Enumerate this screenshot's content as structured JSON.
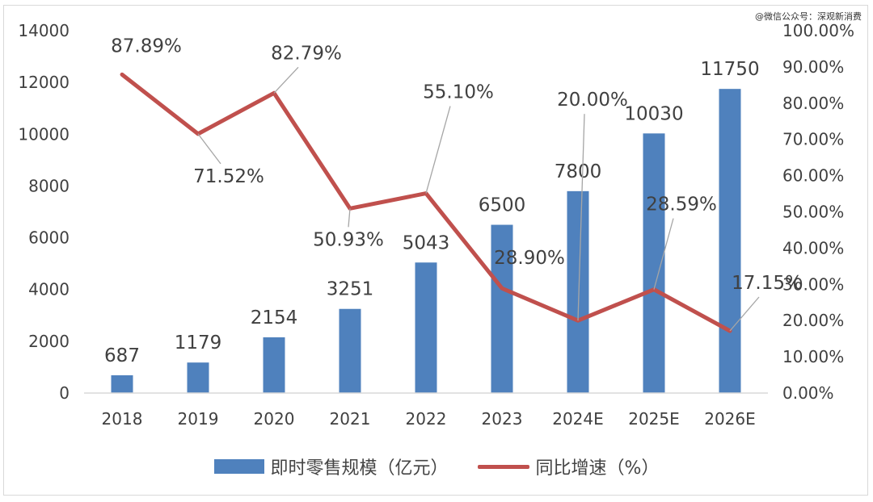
{
  "watermark": "@微信公众号：深观新消费",
  "chart_data": {
    "type": "bar+line",
    "categories": [
      "2018",
      "2019",
      "2020",
      "2021",
      "2022",
      "2023",
      "2024E",
      "2025E",
      "2026E"
    ],
    "series": [
      {
        "name": "即时零售规模（亿元）",
        "type": "bar",
        "axis": "left",
        "color": "#4f81bd",
        "values": [
          687,
          1179,
          2154,
          3251,
          5043,
          6500,
          7800,
          10030,
          11750
        ],
        "labels": [
          "687",
          "1179",
          "2154",
          "3251",
          "5043",
          "6500",
          "7800",
          "10030",
          "11750"
        ]
      },
      {
        "name": "同比增速（%）",
        "type": "line",
        "axis": "right",
        "color": "#c0504d",
        "values": [
          87.89,
          71.52,
          82.79,
          50.93,
          55.1,
          28.9,
          20.0,
          28.59,
          17.15
        ],
        "labels": [
          "87.89%",
          "71.52%",
          "82.79%",
          "50.93%",
          "55.10%",
          "28.90%",
          "20.00%",
          "28.59%",
          "17.15%"
        ]
      }
    ],
    "y_left": {
      "min": 0,
      "max": 14000,
      "step": 2000,
      "ticks": [
        "0",
        "2000",
        "4000",
        "6000",
        "8000",
        "10000",
        "12000",
        "14000"
      ]
    },
    "y_right": {
      "min": 0,
      "max": 100,
      "step": 10,
      "ticks": [
        "0.00%",
        "10.00%",
        "20.00%",
        "30.00%",
        "40.00%",
        "50.00%",
        "60.00%",
        "70.00%",
        "80.00%",
        "90.00%",
        "100.00%"
      ]
    },
    "grid": false,
    "legend_position": "bottom",
    "legend": [
      "即时零售规模（亿元）",
      "同比增速（%）"
    ]
  }
}
